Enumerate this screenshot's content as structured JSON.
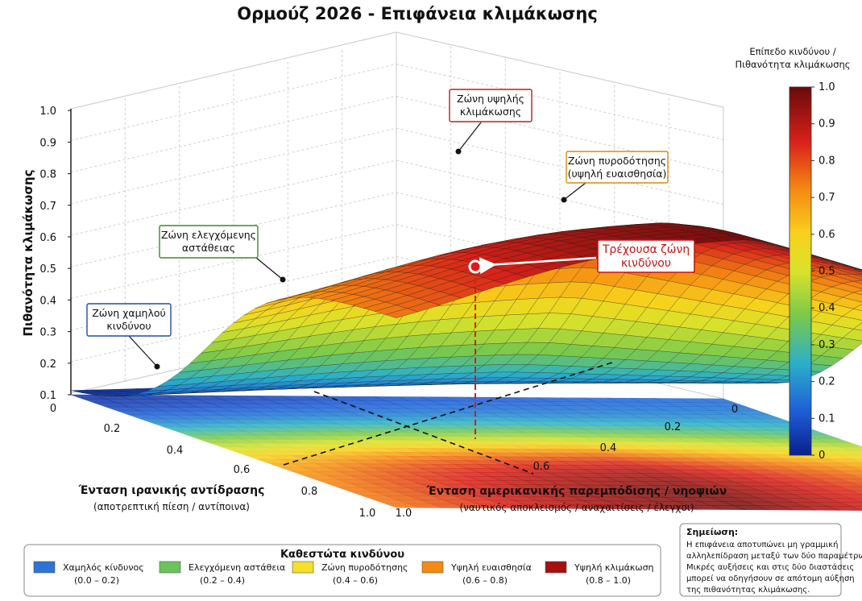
{
  "chart_data": {
    "type": "surface3d",
    "title": "Ορμούζ 2026 - Επιφάνεια κλιμάκωσης",
    "zlabel": "Πιθανότητα κλιμάκωσης",
    "zlim": [
      0.1,
      1.0
    ],
    "z_ticks": [
      "0.1",
      "0.2",
      "0.3",
      "0.4",
      "0.5",
      "0.6",
      "0.7",
      "0.8",
      "0.9",
      "1.0"
    ],
    "x_axis": {
      "label": "Ένταση ιρανικής αντίδρασης",
      "sublabel": "(αποτρεπτική πίεση / αντίποινα)",
      "ticks": [
        "0",
        "0.2",
        "0.4",
        "0.6",
        "0.8",
        "1.0"
      ]
    },
    "y_axis": {
      "label": "Ένταση αμερικανικής παρεμπόδισης / νηοψιών",
      "sublabel": "(ναυτικός αποκλεισμός / αναχαιτίσεις / έλεγχοι)",
      "ticks": [
        "0",
        "0.2",
        "0.4",
        "0.6",
        "0.8",
        "1.0"
      ]
    },
    "current_point": {
      "x": 0.6,
      "y": 0.55,
      "z": 0.52
    },
    "colorbar": {
      "title_line1": "Επίπεδο κινδύνου /",
      "title_line2": "Πιθανότητα κλιμάκωσης",
      "ticks": [
        "0",
        "0.1",
        "0.2",
        "0.3",
        "0.4",
        "0.5",
        "0.6",
        "0.7",
        "0.8",
        "0.9",
        "1.0"
      ],
      "range": [
        0,
        1
      ]
    },
    "annotations": [
      {
        "id": "high",
        "line1": "Ζώνη υψηλής",
        "line2": "κλιμάκωσης",
        "color": "#b22222"
      },
      {
        "id": "fuse",
        "line1": "Ζώνη πυροδότησης",
        "line2": "(υψηλή ευαισθησία)",
        "color": "#e08a00"
      },
      {
        "id": "current",
        "line1": "Τρέχουσα ζώνη",
        "line2": "κινδύνου",
        "color": "#c81414"
      },
      {
        "id": "controlled",
        "line1": "Ζώνη ελεγχόμενης",
        "line2": "αστάθειας",
        "color": "#3a8a2a"
      },
      {
        "id": "low",
        "line1": "Ζώνη χαμηλού",
        "line2": "κινδύνου",
        "color": "#1f4fa3"
      }
    ],
    "legend": {
      "title": "Καθεστώτα κινδύνου",
      "items": [
        {
          "label": "Χαμηλός κίνδυνος",
          "range": "(0.0 – 0.2)",
          "color": "#2e74d6"
        },
        {
          "label": "Ελεγχόμενη αστάθεια",
          "range": "(0.2 – 0.4)",
          "color": "#6cc35c"
        },
        {
          "label": "Ζώνη πυροδότησης",
          "range": "(0.4 – 0.6)",
          "color": "#f5e02a"
        },
        {
          "label": "Υψηλή ευαισθησία",
          "range": "(0.6 – 0.8)",
          "color": "#f58a12"
        },
        {
          "label": "Υψηλή κλιμάκωση",
          "range": "(0.8 – 1.0)",
          "color": "#a80f0f"
        }
      ]
    },
    "note": {
      "title": "Σημείωση:",
      "lines": [
        "Η επιφάνεια αποτυπώνει μη γραμμική",
        "αλληλεπίδραση μεταξύ των δύο παραμέτρων.",
        "Μικρές αυξήσεις και στις δύο διαστάσεις",
        "μπορεί να οδηγήσουν σε απότομη αύξηση",
        "της πιθανότητας κλιμάκωσης."
      ]
    }
  }
}
